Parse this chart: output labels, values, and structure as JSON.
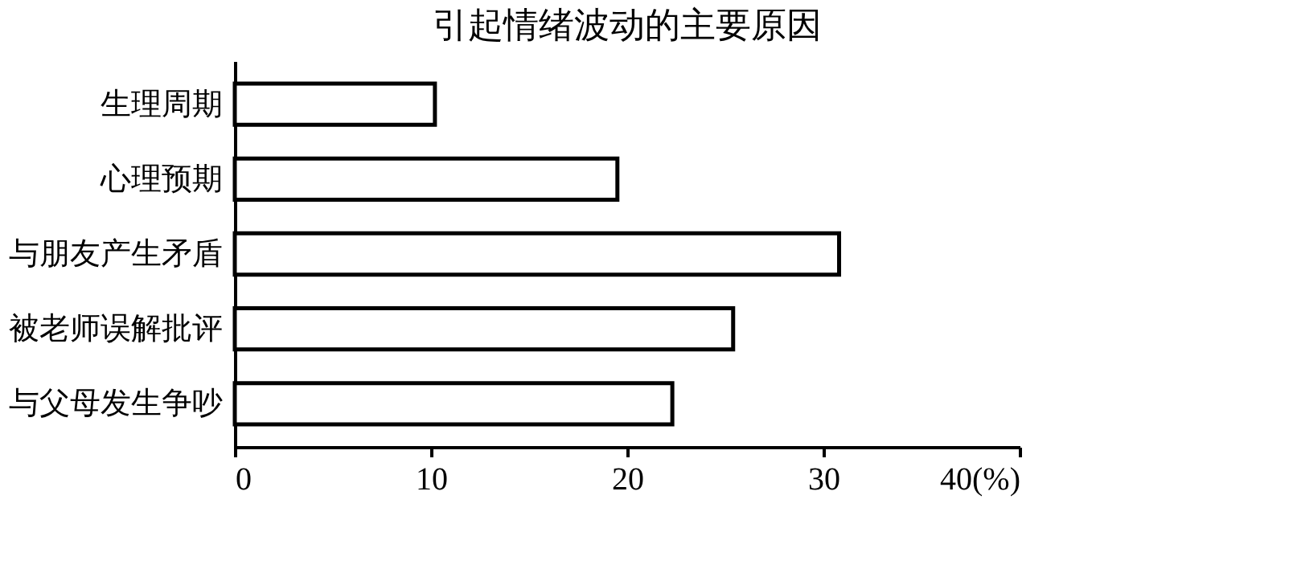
{
  "chart_data": {
    "type": "bar",
    "orientation": "horizontal",
    "title": "引起情绪波动的主要原因",
    "categories": [
      "生理周期",
      "心理预期",
      "与朋友产生矛盾",
      "被老师误解批评",
      "与父母发生争吵"
    ],
    "values": [
      10.2,
      19.5,
      30.8,
      25.4,
      22.3
    ],
    "color": "#ffffff",
    "xlim": [
      0,
      40
    ],
    "xticks": [
      0,
      10,
      20,
      30,
      {
        "value": 40,
        "label": "40(%)"
      }
    ],
    "grid": false
  }
}
